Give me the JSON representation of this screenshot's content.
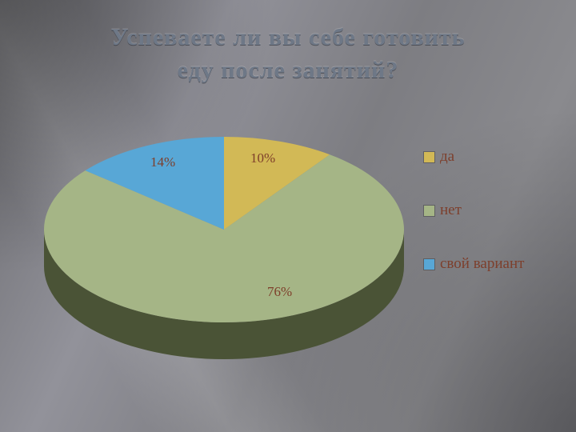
{
  "slide": {
    "title_line1": "Успеваете ли вы себе готовить",
    "title_line2": "еду после занятий?"
  },
  "chart_data": {
    "type": "pie",
    "title": "Успеваете ли вы себе готовить еду после занятий?",
    "labels": [
      "да",
      "нет",
      "свой вариант"
    ],
    "values": [
      10,
      76,
      14
    ],
    "unit": "%",
    "data_labels": [
      "10%",
      "76%",
      "14%"
    ],
    "colors": [
      "#d2b956",
      "#a5b586",
      "#58a7d6"
    ],
    "side_color": "#4a5336",
    "start_angle_deg": 0,
    "direction": "clockwise",
    "effect": "3d",
    "legend_position": "right",
    "label_color": "#7e3e2a",
    "title_color": "#6e7887",
    "background": "gray-gradient"
  }
}
